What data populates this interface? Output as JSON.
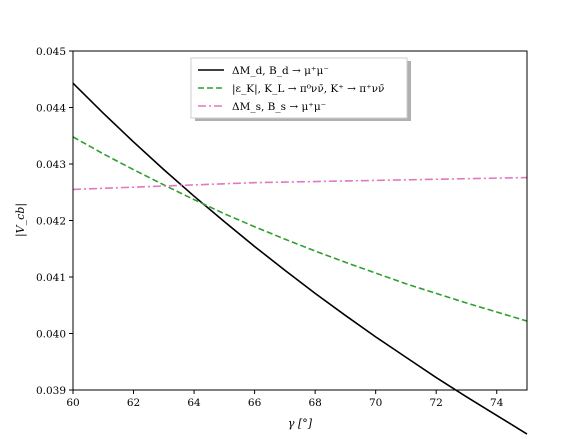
{
  "chart_data": {
    "type": "line",
    "xlabel": "γ [°]",
    "ylabel": "|V_cb|",
    "xlim": [
      60,
      75
    ],
    "ylim": [
      0.039,
      0.045
    ],
    "xticks": [
      60,
      62,
      64,
      66,
      68,
      70,
      72,
      74
    ],
    "xtick_labels": [
      "60",
      "62",
      "64",
      "66",
      "68",
      "70",
      "72",
      "74"
    ],
    "yticks": [
      0.039,
      0.04,
      0.041,
      0.042,
      0.043,
      0.044,
      0.045
    ],
    "ytick_labels": [
      "0.039",
      "0.040",
      "0.041",
      "0.042",
      "0.043",
      "0.044",
      "0.045"
    ],
    "legend_position": "top-center",
    "series": [
      {
        "name": "ΔM_d, B_d → μ⁺μ⁻",
        "color": "#000000",
        "style": "solid",
        "x": [
          60,
          61,
          62,
          63,
          64,
          65,
          66,
          67,
          68,
          69,
          70,
          71,
          72,
          73,
          74,
          75
        ],
        "y": [
          0.04443,
          0.0439,
          0.04339,
          0.0429,
          0.04243,
          0.04198,
          0.04154,
          0.04112,
          0.04071,
          0.04032,
          0.03994,
          0.03958,
          0.03922,
          0.03888,
          0.03855,
          0.03822
        ]
      },
      {
        "name": "|ε_K|, K_L → π⁰νν̄, K⁺ → π⁺νν̄",
        "color": "#2ca02c",
        "style": "dashed",
        "x": [
          60,
          61,
          62,
          63,
          64,
          65,
          66,
          67,
          68,
          69,
          70,
          71,
          72,
          73,
          74,
          75
        ],
        "y": [
          0.04348,
          0.04318,
          0.0429,
          0.04263,
          0.04237,
          0.04212,
          0.04189,
          0.04167,
          0.04146,
          0.04126,
          0.04107,
          0.04088,
          0.04071,
          0.04054,
          0.04038,
          0.04022
        ]
      },
      {
        "name": "ΔM_s, B_s → μ⁺μ⁻",
        "color": "#e377c2",
        "style": "dashdot",
        "x": [
          60,
          61,
          62,
          63,
          64,
          65,
          66,
          67,
          68,
          69,
          70,
          71,
          72,
          73,
          74,
          75
        ],
        "y": [
          0.04255,
          0.04257,
          0.04259,
          0.04261,
          0.04263,
          0.04265,
          0.04267,
          0.04268,
          0.04269,
          0.0427,
          0.04271,
          0.04272,
          0.04273,
          0.04274,
          0.04275,
          0.04276
        ]
      }
    ]
  }
}
